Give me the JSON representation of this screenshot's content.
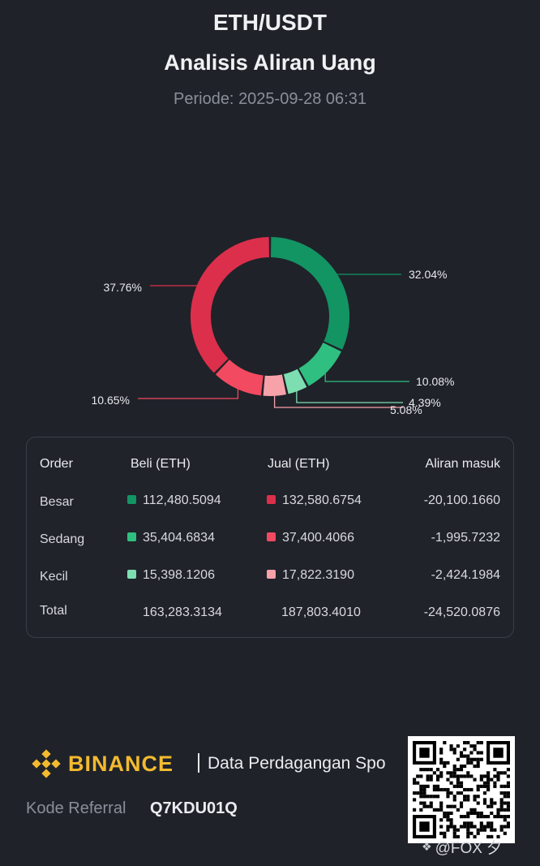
{
  "header": {
    "pair": "ETH/USDT",
    "title": "Analisis Aliran Uang",
    "period_label": "Periode:",
    "period_value": "2025-09-28 06:31"
  },
  "chart_data": {
    "type": "pie",
    "donut": true,
    "slices": [
      {
        "label": "32.04%",
        "value": 32.04,
        "color": "#139463"
      },
      {
        "label": "10.08%",
        "value": 10.08,
        "color": "#2fbf80"
      },
      {
        "label": "4.39%",
        "value": 4.39,
        "color": "#7ddfb1"
      },
      {
        "label": "5.08%",
        "value": 5.08,
        "color": "#f7a1a9"
      },
      {
        "label": "10.65%",
        "value": 10.65,
        "color": "#f24a60"
      },
      {
        "label": "37.76%",
        "value": 37.76,
        "color": "#dc2f4b"
      }
    ]
  },
  "table": {
    "headers": [
      "Order",
      "Beli (ETH)",
      "Jual (ETH)",
      "Aliran masuk"
    ],
    "rows": [
      {
        "label": "Besar",
        "buy": "112,480.5094",
        "sell": "132,580.6754",
        "inflow": "-20,100.1660",
        "buy_color": "#139463",
        "sell_color": "#dc2f4b"
      },
      {
        "label": "Sedang",
        "buy": "35,404.6834",
        "sell": "37,400.4066",
        "inflow": "-1,995.7232",
        "buy_color": "#2fbf80",
        "sell_color": "#f24a60"
      },
      {
        "label": "Kecil",
        "buy": "15,398.1206",
        "sell": "17,822.3190",
        "inflow": "-2,424.1984",
        "buy_color": "#7ddfb1",
        "sell_color": "#f7a1a9"
      }
    ],
    "total": {
      "label": "Total",
      "buy": "163,283.3134",
      "sell": "187,803.4010",
      "inflow": "-24,520.0876"
    }
  },
  "footer": {
    "brand": "BINANCE",
    "brand_color": "#f3ba2f",
    "tagline": "Data Perdagangan Spo",
    "referral_label": "Kode Referral",
    "referral_code": "Q7KDU01Q",
    "watermark": "@FOX 夕"
  }
}
